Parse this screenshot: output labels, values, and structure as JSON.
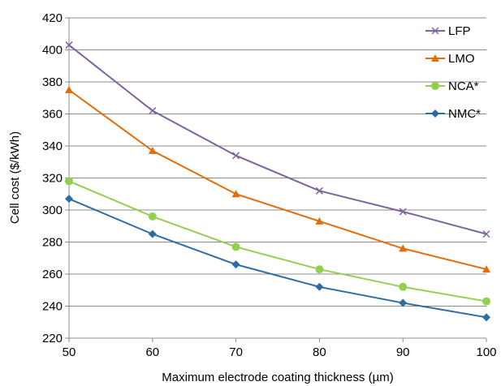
{
  "chart_data": {
    "type": "line",
    "title": "",
    "xlabel": "Maximum electrode coating thickness (µm)",
    "ylabel": "Cell cost ($/kWh)",
    "x": [
      50,
      60,
      70,
      80,
      90,
      100
    ],
    "xlim": [
      50,
      100
    ],
    "ylim": [
      220,
      420
    ],
    "x_ticks": [
      50,
      60,
      70,
      80,
      90,
      100
    ],
    "y_ticks": [
      220,
      240,
      260,
      280,
      300,
      320,
      340,
      360,
      380,
      400,
      420
    ],
    "grid": "horizontal",
    "legend_position": "right",
    "series": [
      {
        "name": "LFP",
        "color": "#7e649e",
        "marker": "x",
        "values": [
          403,
          362,
          334,
          312,
          299,
          285
        ]
      },
      {
        "name": "LMO",
        "color": "#e46c0a",
        "marker": "triangle",
        "values": [
          375,
          337,
          310,
          293,
          276,
          263
        ]
      },
      {
        "name": "NCA*",
        "color": "#92d050",
        "marker": "circle",
        "values": [
          318,
          296,
          277,
          263,
          252,
          243
        ]
      },
      {
        "name": "NMC*",
        "color": "#2e6ca4",
        "marker": "diamond",
        "values": [
          307,
          285,
          266,
          252,
          242,
          233
        ]
      }
    ]
  }
}
